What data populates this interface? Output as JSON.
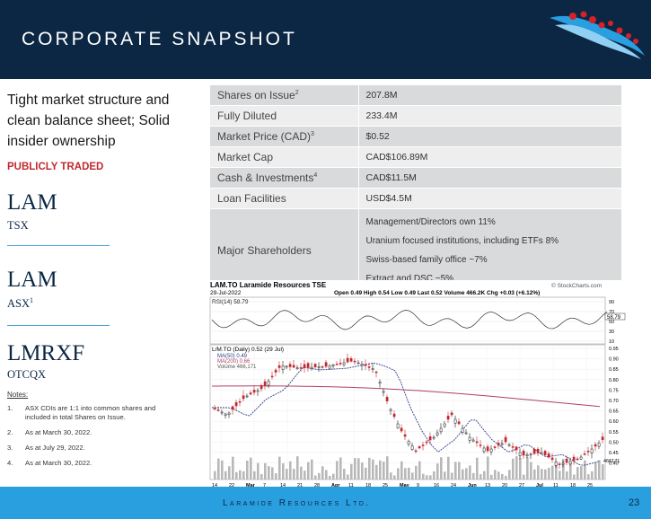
{
  "header": {
    "title": "CORPORATE SNAPSHOT"
  },
  "left": {
    "tagline": "Tight market structure and clean balance sheet; Solid insider ownership",
    "publicly_traded": "PUBLICLY TRADED",
    "listings": [
      {
        "ticker": "LAM",
        "exchange": "TSX",
        "note": ""
      },
      {
        "ticker": "LAM",
        "exchange": "ASX",
        "note": "1"
      },
      {
        "ticker": "LMRXF",
        "exchange": "OTCQX",
        "note": ""
      }
    ],
    "notes_title": "Notes:",
    "notes": [
      {
        "num": "1.",
        "text": "ASX CDIs are 1:1 into common shares and included in total Shares on Issue."
      },
      {
        "num": "2.",
        "text": "As at March 30, 2022."
      },
      {
        "num": "3.",
        "text": "As at July 29, 2022."
      },
      {
        "num": "4.",
        "text": "As at March 30, 2022."
      }
    ]
  },
  "table": {
    "rows": [
      {
        "label": "Shares on Issue",
        "sup": "2",
        "value": "207.8M"
      },
      {
        "label": "Fully Diluted",
        "sup": "",
        "value": "233.4M"
      },
      {
        "label": "Market Price (CAD)",
        "sup": "3",
        "value": "$0.52"
      },
      {
        "label": "Market Cap",
        "sup": "",
        "value": "CAD$106.89M"
      },
      {
        "label": "Cash & Investments",
        "sup": "4",
        "value": "CAD$11.5M"
      },
      {
        "label": "Loan Facilities",
        "sup": "",
        "value": "USD$4.5M"
      }
    ],
    "holders_label": "Major Shareholders",
    "holders": [
      "Management/Directors own 11%",
      "Uranium focused institutions, including ETFs 8%",
      "Swiss-based family office ~7%",
      "Extract and DSC ~5%"
    ]
  },
  "stock_chart": {
    "title": "LAM.TO  Laramide Resources  TSE",
    "watermark": "© StockCharts.com",
    "date": "29-Jul-2022",
    "quote": "Open 0.49  High 0.54  Low 0.49  Last 0.52  Volume 466.2K  Chg +0.03 (+6.12%)",
    "rsi_label": "RSI(14) 58.79",
    "rsi_value": "58.79",
    "price_legend": "L/M.TO (Daily) 0.52 (29 Jul)",
    "ma50_label": "MA(50) 0.49",
    "ma200_label": "MA(200) 0.66",
    "volume_label": "Volume 466,171",
    "volume_value": "466171",
    "rsi_ticks": [
      "90",
      "70",
      "50",
      "30",
      "10"
    ],
    "price_ticks": [
      "0.95",
      "0.90",
      "0.85",
      "0.80",
      "0.75",
      "0.70",
      "0.65",
      "0.60",
      "0.55",
      "0.50",
      "0.45",
      "0.40"
    ],
    "x_ticks": [
      "14",
      "22",
      "Mar",
      "7",
      "14",
      "21",
      "28",
      "Apr",
      "11",
      "18",
      "25",
      "May",
      "9",
      "16",
      "24",
      "Jun",
      "13",
      "20",
      "27",
      "Jul",
      "11",
      "18",
      "25"
    ]
  },
  "footer": {
    "company": "Laramide Resources Ltd.",
    "page": "23"
  },
  "colors": {
    "navy": "#0b2744",
    "blue": "#2a9fe0",
    "red": "#c0282f"
  }
}
